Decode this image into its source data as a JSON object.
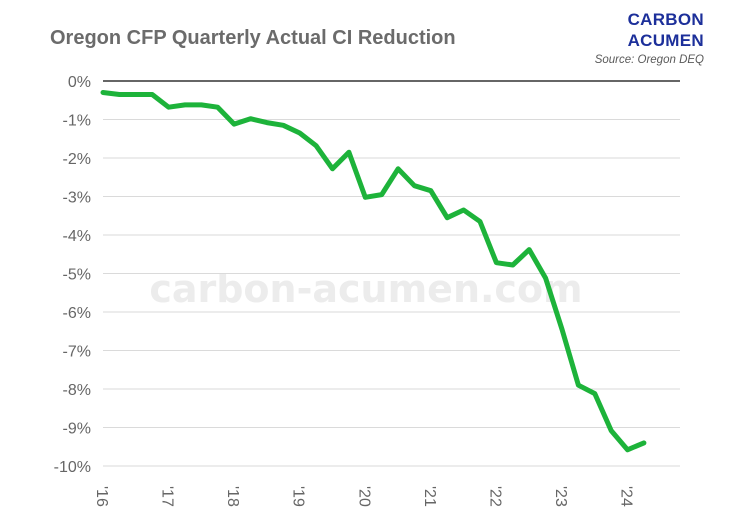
{
  "chart_data": {
    "type": "line",
    "title": "Oregon CFP Quarterly Actual CI Reduction",
    "xlabel": "",
    "ylabel": "",
    "ylim": [
      -10,
      0
    ],
    "xlim": [
      2016,
      2024.8
    ],
    "grid": true,
    "legend": "none",
    "yticks": [
      0,
      -1,
      -2,
      -3,
      -4,
      -5,
      -6,
      -7,
      -8,
      -9,
      -10
    ],
    "ytick_labels": [
      "0%",
      "-1%",
      "-2%",
      "-3%",
      "-4%",
      "-5%",
      "-6%",
      "-7%",
      "-8%",
      "-9%",
      "-10%"
    ],
    "xticks": [
      2016,
      2017,
      2018,
      2019,
      2020,
      2021,
      2022,
      2023,
      2024
    ],
    "xtick_labels": [
      "'16",
      "'17",
      "'18",
      "'19",
      "'20",
      "'21",
      "'22",
      "'23",
      "'24"
    ],
    "series": [
      {
        "color": "#1db33a",
        "x": [
          2016.0,
          2016.25,
          2016.5,
          2016.75,
          2017.0,
          2017.25,
          2017.5,
          2017.75,
          2018.0,
          2018.25,
          2018.5,
          2018.75,
          2019.0,
          2019.25,
          2019.5,
          2019.75,
          2020.0,
          2020.25,
          2020.5,
          2020.75,
          2021.0,
          2021.25,
          2021.5,
          2021.75,
          2022.0,
          2022.25,
          2022.5,
          2022.75,
          2023.0,
          2023.25,
          2023.5,
          2023.75,
          2024.0,
          2024.25
        ],
        "y": [
          -0.3,
          -0.35,
          -0.35,
          -0.35,
          -0.68,
          -0.62,
          -0.62,
          -0.68,
          -1.12,
          -0.98,
          -1.08,
          -1.15,
          -1.35,
          -1.68,
          -2.28,
          -1.85,
          -3.02,
          -2.95,
          -2.28,
          -2.72,
          -2.85,
          -3.55,
          -3.35,
          -3.65,
          -4.72,
          -4.78,
          -4.38,
          -5.12,
          -6.45,
          -7.9,
          -8.12,
          -9.08,
          -9.58,
          -9.4
        ]
      }
    ]
  },
  "brand": {
    "line1": "CARBON",
    "line2": "ACUMEN",
    "source": "Source: Oregon DEQ",
    "color": "#1c2f9a"
  },
  "watermark": "carbon-acumen.com"
}
